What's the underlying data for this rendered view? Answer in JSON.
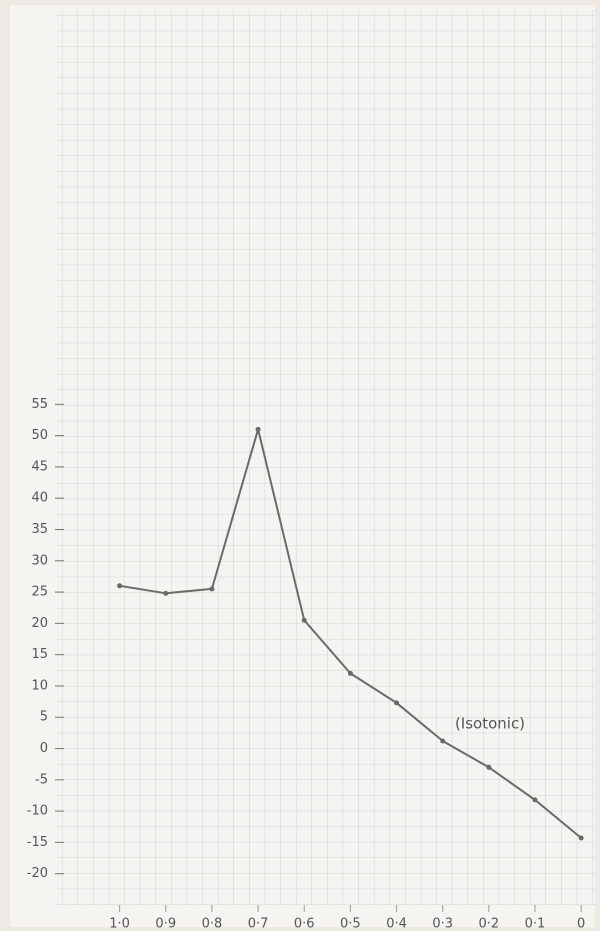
{
  "chart_data": {
    "type": "line",
    "x": [
      1,
      0.9,
      0.8,
      0.7,
      0.6,
      0.5,
      0.4,
      0.3,
      0.2,
      0.1,
      0
    ],
    "values": [
      26,
      24.8,
      25.5,
      51,
      20.5,
      12,
      7.3,
      1.2,
      -3,
      -8.2,
      -14.3
    ],
    "color": "#6a6a6a",
    "xlim": [
      1.14,
      -0.03
    ],
    "ylim": [
      -25,
      118
    ],
    "xticks": [
      {
        "value": 1,
        "label": "1·0"
      },
      {
        "value": 0.9,
        "label": "0·9"
      },
      {
        "value": 0.8,
        "label": "0·8"
      },
      {
        "value": 0.7,
        "label": "0·7"
      },
      {
        "value": 0.6,
        "label": "0·6"
      },
      {
        "value": 0.5,
        "label": "0·5"
      },
      {
        "value": 0.4,
        "label": "0·4"
      },
      {
        "value": 0.3,
        "label": "0·3"
      },
      {
        "value": 0.2,
        "label": "0·2"
      },
      {
        "value": 0.1,
        "label": "0·1"
      },
      0
    ],
    "yticks": [
      -20,
      -15,
      -10,
      -5,
      0,
      5,
      10,
      15,
      20,
      25,
      30,
      35,
      40,
      45,
      50,
      55
    ],
    "annotation": "(Isotonic)"
  }
}
